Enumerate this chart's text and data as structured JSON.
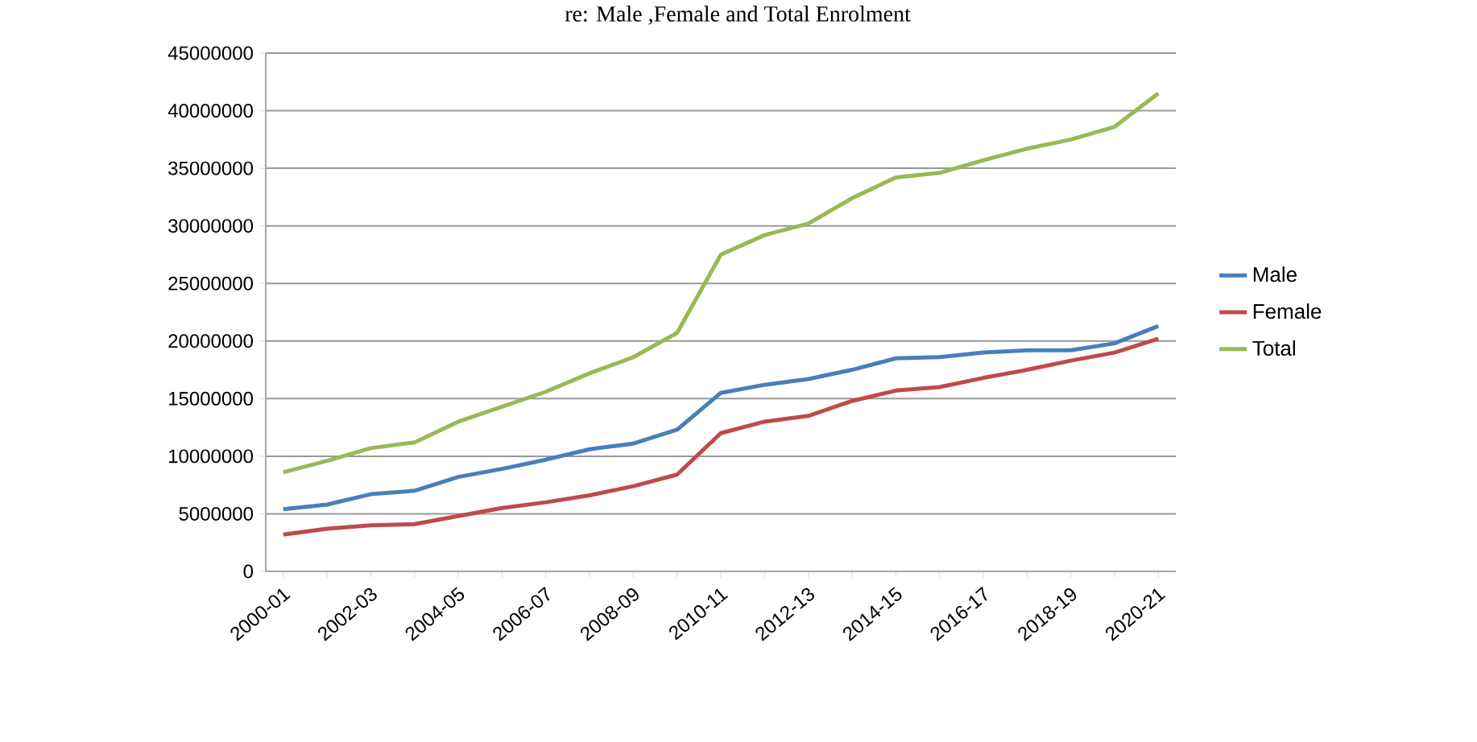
{
  "chart_data": {
    "type": "line",
    "title": "re: Male ,Female and Total Enrolment",
    "categories": [
      "2000-01",
      null,
      "2002-03",
      null,
      "2004-05",
      null,
      "2006-07",
      null,
      "2008-09",
      null,
      "2010-11",
      null,
      "2012-13",
      null,
      "2014-15",
      null,
      "2016-17",
      null,
      "2018-19",
      null,
      "2020-21"
    ],
    "series": [
      {
        "name": "Male",
        "color": "#4a7ebb",
        "values": [
          5400000,
          5800000,
          6700000,
          7000000,
          8200000,
          8900000,
          9700000,
          10600000,
          11100000,
          12300000,
          15500000,
          16200000,
          16700000,
          17500000,
          18500000,
          18600000,
          19000000,
          19200000,
          19200000,
          19800000,
          21300000
        ]
      },
      {
        "name": "Female",
        "color": "#be4b48",
        "values": [
          3200000,
          3700000,
          4000000,
          4100000,
          4800000,
          5500000,
          6000000,
          6600000,
          7400000,
          8400000,
          12000000,
          13000000,
          13500000,
          14800000,
          15700000,
          16000000,
          16800000,
          17500000,
          18300000,
          19000000,
          20200000
        ]
      },
      {
        "name": "Total",
        "color": "#98b954",
        "values": [
          8600000,
          9600000,
          10700000,
          11200000,
          13000000,
          14300000,
          15600000,
          17200000,
          18600000,
          20700000,
          27500000,
          29200000,
          30200000,
          32400000,
          34200000,
          34600000,
          35700000,
          36700000,
          37500000,
          38600000,
          41500000
        ]
      }
    ],
    "ylim": [
      0,
      45000000
    ],
    "yticks": [
      0,
      5000000,
      10000000,
      15000000,
      20000000,
      25000000,
      30000000,
      35000000,
      40000000,
      45000000
    ],
    "grid": "y",
    "legend": "right",
    "marker": "none",
    "line_style": "solid"
  }
}
